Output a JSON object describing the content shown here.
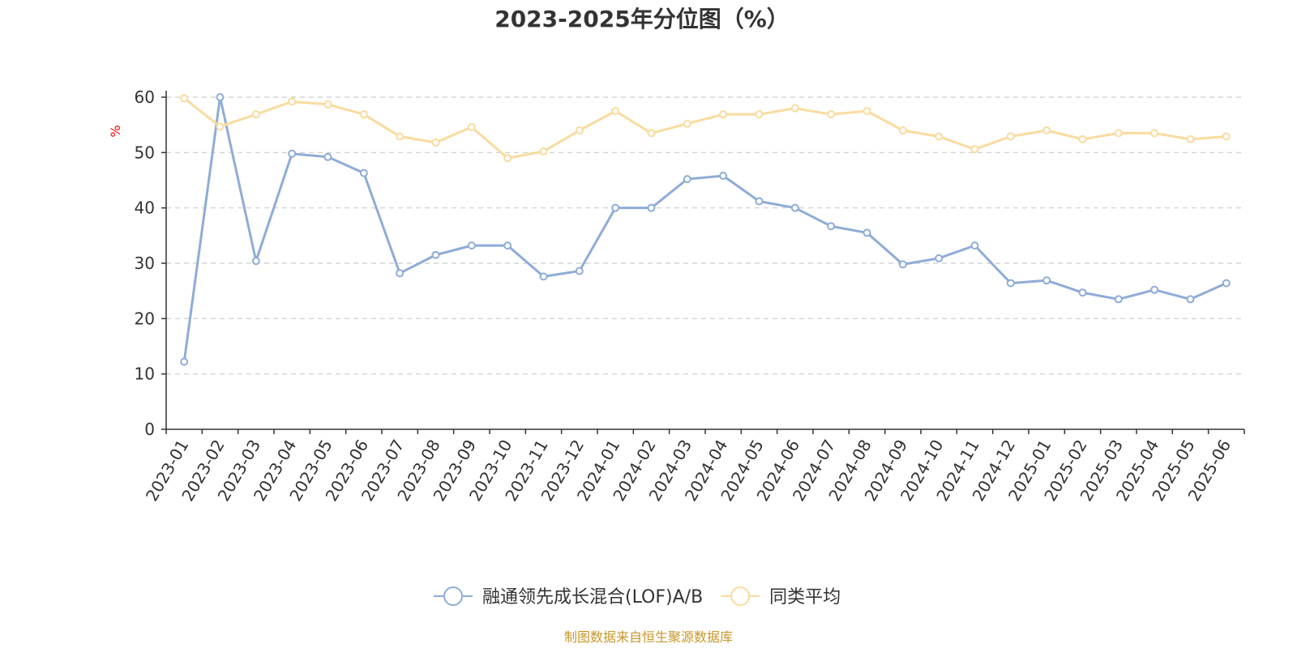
{
  "chart_data": {
    "type": "line",
    "title": "2023-2025年分位图（%）",
    "ylabel": "%",
    "ylim": [
      0,
      60
    ],
    "yticks": [
      0,
      10,
      20,
      30,
      40,
      50,
      60
    ],
    "grid": true,
    "legend_position": "bottom",
    "categories": [
      "2023-01",
      "2023-02",
      "2023-03",
      "2023-04",
      "2023-05",
      "2023-06",
      "2023-07",
      "2023-08",
      "2023-09",
      "2023-10",
      "2023-11",
      "2023-12",
      "2024-01",
      "2024-02",
      "2024-03",
      "2024-04",
      "2024-05",
      "2024-06",
      "2024-07",
      "2024-08",
      "2024-09",
      "2024-10",
      "2024-11",
      "2024-12",
      "2025-01",
      "2025-02",
      "2025-03",
      "2025-04",
      "2025-05",
      "2025-06"
    ],
    "series": [
      {
        "name": "融通领先成长混合(LOF)A/B",
        "color": "#8eacd8",
        "values": [
          12.2,
          60.0,
          30.4,
          49.8,
          49.2,
          46.3,
          28.2,
          31.5,
          33.2,
          33.2,
          27.6,
          28.6,
          40.0,
          40.0,
          45.2,
          45.8,
          41.2,
          40.0,
          36.7,
          35.5,
          29.8,
          30.9,
          33.2,
          26.4,
          26.9,
          24.7,
          23.5,
          25.2,
          23.5,
          26.4
        ]
      },
      {
        "name": "同类平均",
        "color": "#fadb9e",
        "values": [
          59.8,
          54.7,
          56.9,
          59.2,
          58.7,
          56.9,
          52.9,
          51.8,
          54.6,
          49.0,
          50.2,
          54.0,
          57.5,
          53.5,
          55.2,
          56.9,
          56.9,
          58.0,
          56.9,
          57.5,
          54.0,
          52.9,
          50.6,
          52.9,
          54.0,
          52.4,
          53.5,
          53.5,
          52.4,
          52.9
        ]
      }
    ]
  },
  "source_note": "制图数据来自恒生聚源数据库"
}
